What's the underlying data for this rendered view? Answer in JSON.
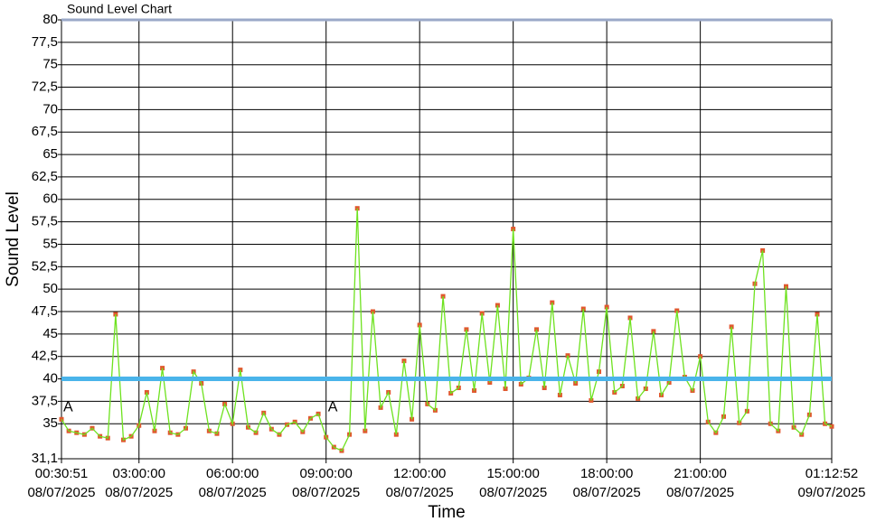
{
  "chart_data": {
    "type": "line",
    "title": "Sound Level Chart",
    "x_label": "Time",
    "y_label": "Sound Level",
    "x": [
      "2025-07-08T00:30:51",
      "2025-07-08T00:45:00",
      "2025-07-08T01:00:00",
      "2025-07-08T01:15:00",
      "2025-07-08T01:30:00",
      "2025-07-08T01:45:00",
      "2025-07-08T02:00:00",
      "2025-07-08T02:15:00",
      "2025-07-08T02:30:00",
      "2025-07-08T02:45:00",
      "2025-07-08T03:00:00",
      "2025-07-08T03:15:00",
      "2025-07-08T03:30:00",
      "2025-07-08T03:45:00",
      "2025-07-08T04:00:00",
      "2025-07-08T04:15:00",
      "2025-07-08T04:30:00",
      "2025-07-08T04:45:00",
      "2025-07-08T05:00:00",
      "2025-07-08T05:15:00",
      "2025-07-08T05:30:00",
      "2025-07-08T05:45:00",
      "2025-07-08T06:00:00",
      "2025-07-08T06:15:00",
      "2025-07-08T06:30:00",
      "2025-07-08T06:45:00",
      "2025-07-08T07:00:00",
      "2025-07-08T07:15:00",
      "2025-07-08T07:30:00",
      "2025-07-08T07:45:00",
      "2025-07-08T08:00:00",
      "2025-07-08T08:15:00",
      "2025-07-08T08:30:00",
      "2025-07-08T08:45:00",
      "2025-07-08T09:00:00",
      "2025-07-08T09:15:00",
      "2025-07-08T09:30:00",
      "2025-07-08T09:45:00",
      "2025-07-08T10:00:00",
      "2025-07-08T10:15:00",
      "2025-07-08T10:30:00",
      "2025-07-08T10:45:00",
      "2025-07-08T11:00:00",
      "2025-07-08T11:15:00",
      "2025-07-08T11:30:00",
      "2025-07-08T11:45:00",
      "2025-07-08T12:00:00",
      "2025-07-08T12:15:00",
      "2025-07-08T12:30:00",
      "2025-07-08T12:45:00",
      "2025-07-08T13:00:00",
      "2025-07-08T13:15:00",
      "2025-07-08T13:30:00",
      "2025-07-08T13:45:00",
      "2025-07-08T14:00:00",
      "2025-07-08T14:15:00",
      "2025-07-08T14:30:00",
      "2025-07-08T14:45:00",
      "2025-07-08T15:00:00",
      "2025-07-08T15:15:00",
      "2025-07-08T15:30:00",
      "2025-07-08T15:45:00",
      "2025-07-08T16:00:00",
      "2025-07-08T16:15:00",
      "2025-07-08T16:30:00",
      "2025-07-08T16:45:00",
      "2025-07-08T17:00:00",
      "2025-07-08T17:15:00",
      "2025-07-08T17:30:00",
      "2025-07-08T17:45:00",
      "2025-07-08T18:00:00",
      "2025-07-08T18:15:00",
      "2025-07-08T18:30:00",
      "2025-07-08T18:45:00",
      "2025-07-08T19:00:00",
      "2025-07-08T19:15:00",
      "2025-07-08T19:30:00",
      "2025-07-08T19:45:00",
      "2025-07-08T20:00:00",
      "2025-07-08T20:15:00",
      "2025-07-08T20:30:00",
      "2025-07-08T20:45:00",
      "2025-07-08T21:00:00",
      "2025-07-08T21:15:00",
      "2025-07-08T21:30:00",
      "2025-07-08T21:45:00",
      "2025-07-08T22:00:00",
      "2025-07-08T22:15:00",
      "2025-07-08T22:30:00",
      "2025-07-08T22:45:00",
      "2025-07-08T23:00:00",
      "2025-07-08T23:15:00",
      "2025-07-08T23:30:00",
      "2025-07-08T23:45:00",
      "2025-07-09T00:00:00",
      "2025-07-09T00:15:00",
      "2025-07-09T00:30:00",
      "2025-07-09T00:45:00",
      "2025-07-09T01:00:00",
      "2025-07-09T01:12:52"
    ],
    "series": [
      {
        "color": "#6ee21f",
        "marker_color": "#e0582e",
        "values": [
          35.5,
          34.2,
          34.0,
          33.8,
          34.5,
          33.6,
          33.4,
          47.2,
          33.2,
          33.6,
          34.8,
          38.5,
          34.2,
          41.2,
          34.0,
          33.8,
          34.5,
          40.8,
          39.5,
          34.2,
          33.9,
          37.2,
          35.0,
          41.0,
          34.6,
          34.0,
          36.2,
          34.4,
          33.8,
          34.9,
          35.2,
          34.1,
          35.6,
          36.1,
          33.5,
          32.4,
          32.0,
          33.8,
          59.0,
          34.2,
          47.5,
          36.8,
          38.5,
          33.8,
          42.0,
          35.5,
          46.0,
          37.2,
          36.5,
          49.2,
          38.4,
          39.0,
          45.5,
          38.7,
          47.3,
          39.6,
          48.2,
          38.9,
          56.7,
          39.4,
          40.1,
          45.5,
          39.0,
          48.5,
          38.2,
          42.6,
          39.5,
          47.8,
          37.6,
          40.8,
          48.0,
          38.5,
          39.2,
          46.8,
          37.8,
          38.9,
          45.3,
          38.2,
          39.6,
          47.6,
          40.2,
          38.7,
          42.5,
          35.2,
          34.0,
          35.8,
          45.8,
          35.1,
          36.4,
          50.6,
          54.3,
          35.0,
          34.2,
          50.3,
          34.6,
          33.8,
          36.0,
          47.2,
          35.0,
          34.7
        ]
      }
    ],
    "threshold": 40,
    "threshold_color": "#4ab4ea",
    "markers": [
      {
        "x": "2025-07-08T00:30:51",
        "y": 36.8,
        "label": "A"
      },
      {
        "x": "2025-07-08T09:00:00",
        "y": 36.8,
        "label": "A"
      }
    ],
    "xlim": [
      "2025-07-08T00:30:51",
      "2025-07-09T01:12:52"
    ],
    "xticks": [
      {
        "value": "2025-07-08T00:30:51",
        "label": [
          "00:30:51",
          "08/07/2025"
        ]
      },
      {
        "value": "2025-07-08T03:00:00",
        "label": [
          "03:00:00",
          "08/07/2025"
        ]
      },
      {
        "value": "2025-07-08T06:00:00",
        "label": [
          "06:00:00",
          "08/07/2025"
        ]
      },
      {
        "value": "2025-07-08T09:00:00",
        "label": [
          "09:00:00",
          "08/07/2025"
        ]
      },
      {
        "value": "2025-07-08T12:00:00",
        "label": [
          "12:00:00",
          "08/07/2025"
        ]
      },
      {
        "value": "2025-07-08T15:00:00",
        "label": [
          "15:00:00",
          "08/07/2025"
        ]
      },
      {
        "value": "2025-07-08T18:00:00",
        "label": [
          "18:00:00",
          "08/07/2025"
        ]
      },
      {
        "value": "2025-07-08T21:00:00",
        "label": [
          "21:00:00",
          "08/07/2025"
        ]
      },
      {
        "value": "2025-07-09T01:12:52",
        "label": [
          "01:12:52",
          "09/07/2025"
        ]
      }
    ],
    "ylim": [
      31.1,
      80
    ],
    "yticks": [
      {
        "value": 31.1,
        "label": "31,1"
      },
      35,
      {
        "value": 37.5,
        "label": "37,5"
      },
      40,
      {
        "value": 42.5,
        "label": "42,5"
      },
      45,
      {
        "value": 47.5,
        "label": "47,5"
      },
      50,
      {
        "value": 52.5,
        "label": "52,5"
      },
      55,
      {
        "value": 57.5,
        "label": "57,5"
      },
      60,
      {
        "value": 62.5,
        "label": "62,5"
      },
      65,
      {
        "value": 67.5,
        "label": "67,5"
      },
      70,
      {
        "value": 72.5,
        "label": "72,5"
      },
      75,
      {
        "value": 77.5,
        "label": "77,5"
      },
      80
    ],
    "grid": true
  }
}
